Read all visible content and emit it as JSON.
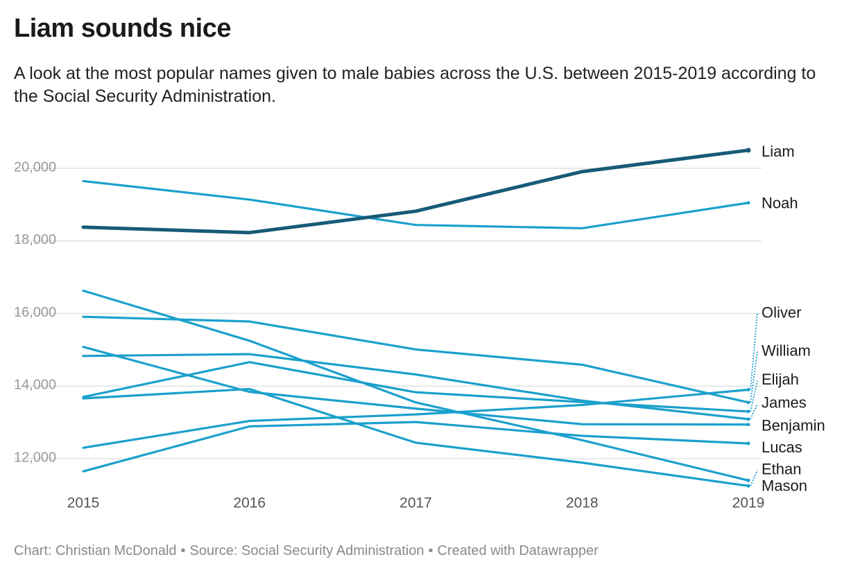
{
  "header": {
    "title": "Liam sounds nice",
    "subtitle": "A look at the most popular names given to male babies across the U.S. between 2015-2019 according to the Social Security Administration."
  },
  "footer": {
    "chart_credit": "Chart: Christian McDonald",
    "source": "Source: Social Security Administration",
    "created_with": "Created with Datawrapper",
    "separator": "•"
  },
  "colors": {
    "highlight": "#175b78",
    "series": "#1ba0cc",
    "grid": "#e2e2e2",
    "tick": "#999999"
  },
  "chart_data": {
    "type": "line",
    "title": "Liam sounds nice",
    "xlabel": "",
    "ylabel": "",
    "categories": [
      "2015",
      "2016",
      "2017",
      "2018",
      "2019"
    ],
    "ylim": [
      11200,
      20800
    ],
    "yticks": [
      12000,
      14000,
      16000,
      18000,
      20000
    ],
    "ytick_labels": [
      "12,000",
      "14,000",
      "16,000",
      "18,000",
      "20,000"
    ],
    "grid": true,
    "legend": "direct labels at right end of lines",
    "highlight_series": "Liam",
    "series": [
      {
        "name": "Liam",
        "values": [
          18380,
          18230,
          18820,
          19910,
          20500
        ]
      },
      {
        "name": "Noah",
        "values": [
          19650,
          19140,
          18440,
          18350,
          19050
        ]
      },
      {
        "name": "Oliver",
        "values": [
          12300,
          13040,
          13220,
          13480,
          13900
        ]
      },
      {
        "name": "William",
        "values": [
          15910,
          15780,
          15010,
          14590,
          13550
        ]
      },
      {
        "name": "Elijah",
        "values": [
          13700,
          14660,
          13830,
          13560,
          13300
        ]
      },
      {
        "name": "James",
        "values": [
          14830,
          14880,
          14320,
          13600,
          13090
        ]
      },
      {
        "name": "Benjamin",
        "values": [
          15080,
          13840,
          13380,
          12950,
          12940
        ]
      },
      {
        "name": "Lucas",
        "values": [
          11650,
          12890,
          13010,
          12630,
          12420
        ]
      },
      {
        "name": "Ethan",
        "values": [
          13660,
          13920,
          12440,
          11890,
          11250
        ]
      },
      {
        "name": "Mason",
        "values": [
          16630,
          15250,
          13550,
          12510,
          11400
        ]
      }
    ],
    "end_labels": [
      {
        "name": "Liam",
        "label_value": 20440
      },
      {
        "name": "Noah",
        "label_value": 19010
      },
      {
        "name": "Oliver",
        "label_value": 16000
      },
      {
        "name": "William",
        "label_value": 14950
      },
      {
        "name": "Elijah",
        "label_value": 14150
      },
      {
        "name": "James",
        "label_value": 13510
      },
      {
        "name": "Benjamin",
        "label_value": 12880
      },
      {
        "name": "Lucas",
        "label_value": 12280
      },
      {
        "name": "Ethan",
        "label_value": 11680
      },
      {
        "name": "Mason",
        "label_value": 11220
      }
    ]
  }
}
